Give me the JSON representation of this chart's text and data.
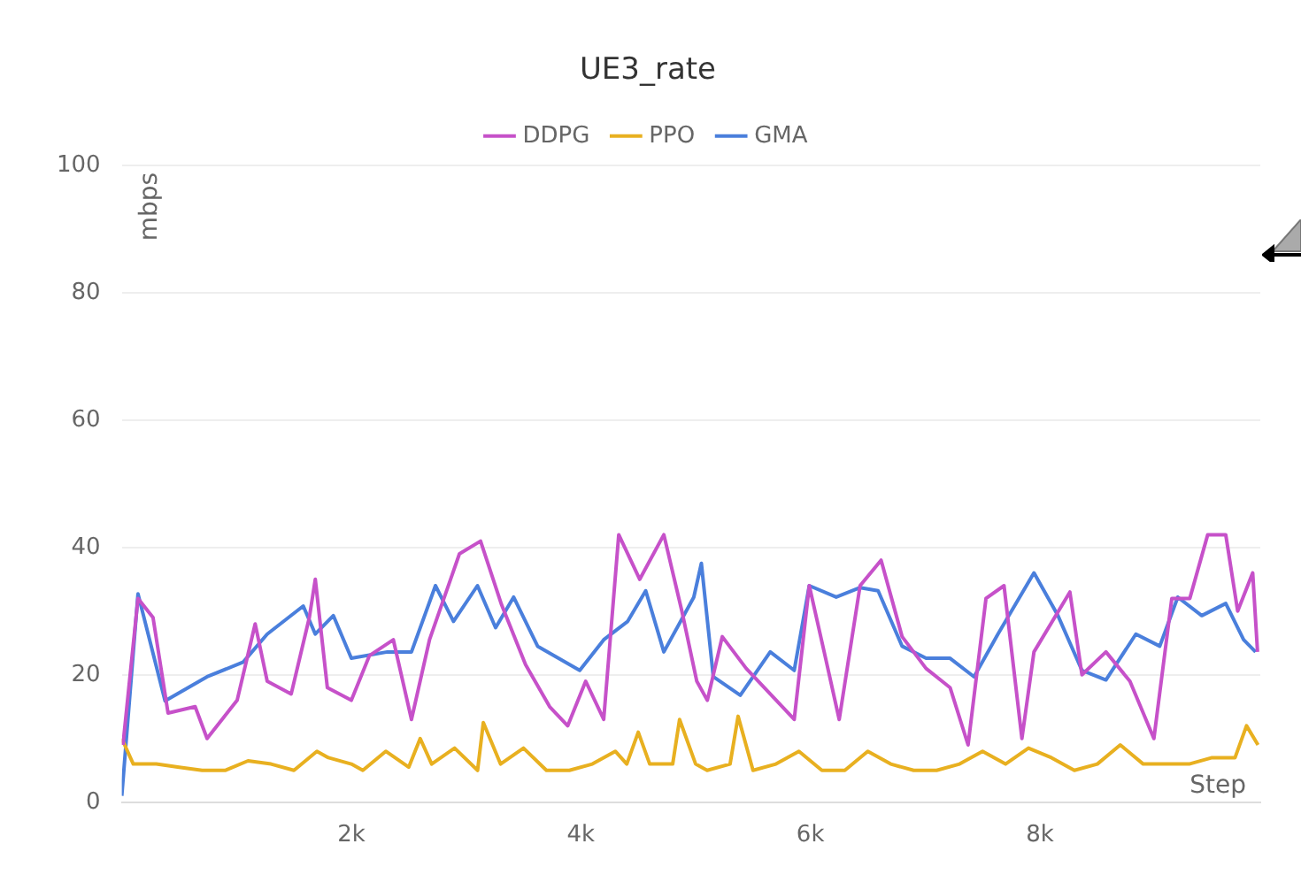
{
  "chart_data": {
    "type": "line",
    "title": "UE3_rate",
    "xlabel": "Step",
    "ylabel": "mbps",
    "xlim": [
      0,
      9920
    ],
    "ylim": [
      0,
      100
    ],
    "xticks": [
      {
        "value": 2000,
        "label": "2k"
      },
      {
        "value": 4000,
        "label": "4k"
      },
      {
        "value": 6000,
        "label": "6k"
      },
      {
        "value": 8000,
        "label": "8k"
      }
    ],
    "yticks": [
      0,
      20,
      40,
      60,
      80,
      100
    ],
    "grid": "y",
    "legend": "top",
    "marker": "none",
    "line_style": "solid",
    "series": [
      {
        "name": "DDPG",
        "color": "#c651c9",
        "x": [
          10,
          141,
          272,
          403,
          639,
          743,
          1005,
          1162,
          1267,
          1476,
          1634,
          1686,
          1791,
          2000,
          2157,
          2366,
          2524,
          2681,
          2942,
          3126,
          3309,
          3518,
          3728,
          3885,
          4042,
          4199,
          4330,
          4513,
          4723,
          4880,
          5010,
          5102,
          5232,
          5441,
          5650,
          5859,
          5990,
          6120,
          6251,
          6433,
          6616,
          6799,
          7008,
          7217,
          7374,
          7530,
          7687,
          7843,
          7948,
          8261,
          8366,
          8575,
          8784,
          8993,
          9149,
          9306,
          9462,
          9619,
          9723,
          9854,
          9896
        ],
        "values": [
          9,
          32,
          29,
          14,
          15,
          10,
          16,
          28,
          19,
          17,
          29,
          35,
          18,
          16,
          23,
          25.5,
          13,
          25.5,
          39,
          41,
          31,
          21.6,
          15,
          12,
          19,
          13,
          42,
          35,
          42,
          30,
          19,
          16,
          26,
          21,
          17,
          13,
          34,
          23.6,
          13,
          34,
          38,
          26,
          21,
          18,
          9,
          32,
          34,
          10,
          23.6,
          33,
          20,
          23.6,
          19,
          10,
          32,
          32,
          42,
          42,
          30,
          36,
          23.6
        ]
      },
      {
        "name": "PPO",
        "color": "#e8b020",
        "x": [
          0,
          100,
          300,
          500,
          700,
          900,
          1100,
          1300,
          1500,
          1700,
          1800,
          2000,
          2100,
          2300,
          2500,
          2600,
          2700,
          2900,
          3100,
          3150,
          3300,
          3500,
          3700,
          3900,
          4100,
          4300,
          4400,
          4500,
          4600,
          4800,
          4860,
          5000,
          5100,
          5300,
          5370,
          5500,
          5700,
          5900,
          6100,
          6300,
          6500,
          6700,
          6900,
          7100,
          7300,
          7500,
          7700,
          7900,
          8100,
          8300,
          8500,
          8700,
          8900,
          9100,
          9300,
          9500,
          9700,
          9800,
          9900
        ],
        "values": [
          10,
          6,
          6,
          5.5,
          5,
          5,
          6.5,
          6,
          5,
          8,
          7,
          6,
          5,
          8,
          5.5,
          10,
          6,
          8.5,
          5,
          12.5,
          6,
          8.5,
          5,
          5,
          6,
          8,
          6,
          11,
          6,
          6,
          13,
          6,
          5,
          6,
          13.5,
          5,
          6,
          8,
          5,
          5,
          8,
          6,
          5,
          5,
          6,
          8,
          6,
          8.5,
          7,
          5,
          6,
          9,
          6,
          6,
          6,
          7,
          7,
          12,
          9
        ]
      },
      {
        "name": "GMA",
        "color": "#4a7fdc",
        "x": [
          0,
          141,
          377,
          743,
          1058,
          1267,
          1581,
          1686,
          1843,
          2000,
          2314,
          2524,
          2733,
          2890,
          3099,
          3257,
          3414,
          3623,
          3990,
          4199,
          4408,
          4565,
          4723,
          4984,
          5050,
          5154,
          5389,
          5650,
          5859,
          5990,
          6225,
          6433,
          6590,
          6799,
          7008,
          7217,
          7426,
          7634,
          7948,
          8157,
          8366,
          8575,
          8836,
          9044,
          9201,
          9410,
          9619,
          9775,
          9879
        ],
        "values": [
          1,
          32.7,
          15.9,
          19.7,
          22,
          26.4,
          30.8,
          26.4,
          29.3,
          22.6,
          23.6,
          23.6,
          34,
          28.4,
          34,
          27.4,
          32.2,
          24.5,
          20.7,
          25.5,
          28.4,
          33.2,
          23.6,
          32.2,
          37.5,
          19.7,
          16.8,
          23.6,
          20.7,
          34,
          32.2,
          33.7,
          33.2,
          24.5,
          22.6,
          22.6,
          19.7,
          26.4,
          36,
          29.3,
          20.7,
          19.2,
          26.4,
          24.5,
          32.2,
          29.3,
          31.2,
          25.5,
          23.6
        ]
      }
    ]
  }
}
